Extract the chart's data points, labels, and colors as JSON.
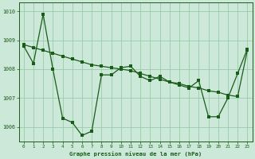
{
  "bg_color": "#cce8d8",
  "plot_bg_color": "#cce8d8",
  "grid_color": "#99ccaa",
  "line_color": "#1a5c1a",
  "xlabel": "Graphe pression niveau de la mer (hPa)",
  "xlim": [
    -0.5,
    23.5
  ],
  "ylim": [
    1005.5,
    1010.3
  ],
  "yticks": [
    1006,
    1007,
    1008,
    1009,
    1010
  ],
  "xticks": [
    0,
    1,
    2,
    3,
    4,
    5,
    6,
    7,
    8,
    9,
    10,
    11,
    12,
    13,
    14,
    15,
    16,
    17,
    18,
    19,
    20,
    21,
    22,
    23
  ],
  "line1_x": [
    0,
    1,
    2,
    3,
    4,
    5,
    6,
    7,
    8,
    9,
    10,
    11,
    12,
    13,
    14,
    15,
    16,
    17,
    18,
    19,
    20,
    21,
    22,
    23
  ],
  "line1_y": [
    1008.8,
    1008.2,
    1009.9,
    1008.0,
    1006.3,
    1006.15,
    1005.7,
    1005.85,
    1007.8,
    1007.8,
    1008.05,
    1008.1,
    1007.75,
    1007.6,
    1007.75,
    1007.55,
    1007.45,
    1007.35,
    1007.6,
    1006.35,
    1006.35,
    1007.0,
    1007.85,
    1008.7
  ],
  "line2_x": [
    0,
    1,
    2,
    3,
    4,
    5,
    6,
    7,
    8,
    9,
    10,
    11,
    12,
    13,
    14,
    15,
    16,
    17,
    18,
    19,
    20,
    21,
    22,
    23
  ],
  "line2_y": [
    1008.85,
    1008.75,
    1008.65,
    1008.55,
    1008.45,
    1008.35,
    1008.25,
    1008.15,
    1008.1,
    1008.05,
    1008.0,
    1007.95,
    1007.85,
    1007.75,
    1007.65,
    1007.55,
    1007.5,
    1007.4,
    1007.35,
    1007.25,
    1007.2,
    1007.1,
    1007.05,
    1008.65
  ]
}
